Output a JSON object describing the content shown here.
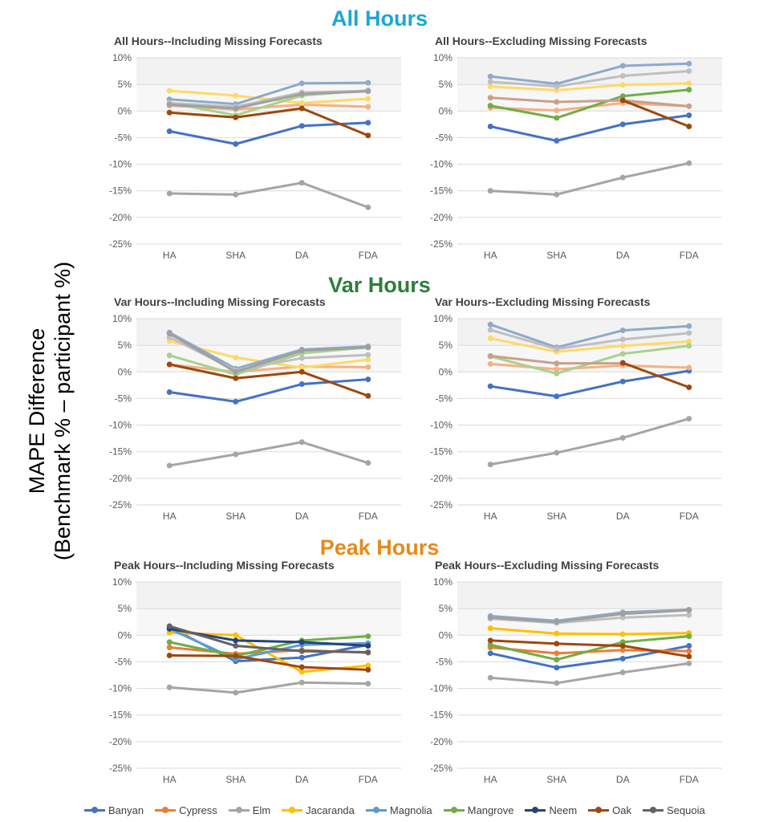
{
  "y_axis_label": {
    "line1": "MAPE Difference",
    "line2": "(Benchmark  %  – participant  %)"
  },
  "sections": [
    {
      "title": "All Hours",
      "color": "#1BA7D6"
    },
    {
      "title": "Var Hours",
      "color": "#2E7D3A"
    },
    {
      "title": "Peak Hours",
      "color": "#E8891A"
    }
  ],
  "legend": [
    {
      "name": "Banyan",
      "color": "#4472C4"
    },
    {
      "name": "Cypress",
      "color": "#ED7D31"
    },
    {
      "name": "Elm",
      "color": "#A5A5A5"
    },
    {
      "name": "Jacaranda",
      "color": "#FFC000"
    },
    {
      "name": "Magnolia",
      "color": "#5B9BD5"
    },
    {
      "name": "Mangrove",
      "color": "#70AD47"
    },
    {
      "name": "Neem",
      "color": "#264478"
    },
    {
      "name": "Oak",
      "color": "#9E480E"
    },
    {
      "name": "Sequoia",
      "color": "#636363"
    }
  ],
  "chart_data": [
    {
      "type": "line",
      "title": "All Hours--Including Missing Forecasts",
      "categories": [
        "HA",
        "SHA",
        "DA",
        "FDA"
      ],
      "ylim": [
        -25,
        10
      ],
      "yticks": [
        "10%",
        "5%",
        "0%",
        "-5%",
        "-10%",
        "-15%",
        "-20%",
        "-25%"
      ],
      "series": [
        {
          "name": "Banyan",
          "color": "#4472C4",
          "values": [
            -3.8,
            -6.2,
            -2.8,
            -2.2
          ]
        },
        {
          "name": "Cypress",
          "color": "#F4B183",
          "values": [
            1.0,
            0.3,
            1.2,
            0.8
          ]
        },
        {
          "name": "Elm",
          "color": "#A5A5A5",
          "values": [
            -15.5,
            -15.7,
            -13.5,
            -18.1
          ]
        },
        {
          "name": "Jacaranda",
          "color": "#FFD966",
          "values": [
            3.8,
            2.9,
            1.5,
            2.3
          ]
        },
        {
          "name": "Magnolia",
          "color": "#8EA9C9",
          "values": [
            2.2,
            1.3,
            5.2,
            5.3
          ]
        },
        {
          "name": "Mangrove",
          "color": "#A9D18E",
          "values": [
            1.5,
            -0.8,
            2.9,
            3.9
          ]
        },
        {
          "name": "Neem",
          "color": "#BFBFBF",
          "values": [
            1.5,
            0.8,
            3.5,
            3.8
          ]
        },
        {
          "name": "Oak",
          "color": "#9E480E",
          "values": [
            -0.3,
            -1.2,
            0.5,
            -4.6
          ]
        },
        {
          "name": "Sequoia",
          "color": "#A0A0A0",
          "values": [
            1.2,
            0.5,
            3.2,
            3.7
          ]
        }
      ]
    },
    {
      "type": "line",
      "title": "All Hours--Excluding Missing Forecasts",
      "categories": [
        "HA",
        "SHA",
        "DA",
        "FDA"
      ],
      "ylim": [
        -25,
        10
      ],
      "yticks": [
        "10%",
        "5%",
        "0%",
        "-5%",
        "-10%",
        "-15%",
        "-20%",
        "-25%"
      ],
      "series": [
        {
          "name": "Banyan",
          "color": "#4472C4",
          "values": [
            -2.9,
            -5.6,
            -2.5,
            -0.8
          ]
        },
        {
          "name": "Cypress",
          "color": "#F4B183",
          "values": [
            0.6,
            0.1,
            1.5,
            0.9
          ]
        },
        {
          "name": "Elm",
          "color": "#A5A5A5",
          "values": [
            -15.0,
            -15.7,
            -12.5,
            -9.8
          ]
        },
        {
          "name": "Jacaranda",
          "color": "#FFD966",
          "values": [
            4.6,
            3.9,
            4.9,
            5.2
          ]
        },
        {
          "name": "Magnolia",
          "color": "#8EA9C9",
          "values": [
            6.5,
            5.1,
            8.5,
            8.9
          ]
        },
        {
          "name": "Mangrove",
          "color": "#70AD47",
          "values": [
            1.0,
            -1.3,
            2.8,
            4.0
          ]
        },
        {
          "name": "Neem",
          "color": "#BFBFBF",
          "values": [
            5.5,
            4.6,
            6.6,
            7.5
          ]
        },
        {
          "name": "Oak",
          "color": "#C9A08C",
          "values": [
            2.5,
            1.7,
            2.0,
            0.9
          ]
        },
        {
          "name": "Sequoia",
          "color": "#9E480E",
          "values": [
            null,
            null,
            2.0,
            -2.9
          ]
        }
      ]
    },
    {
      "type": "line",
      "title": "Var Hours--Including Missing Forecasts",
      "categories": [
        "HA",
        "SHA",
        "DA",
        "FDA"
      ],
      "ylim": [
        -25,
        10
      ],
      "yticks": [
        "10%",
        "5%",
        "0%",
        "-5%",
        "-10%",
        "-15%",
        "-20%",
        "-25%"
      ],
      "series": [
        {
          "name": "Banyan",
          "color": "#4472C4",
          "values": [
            -3.8,
            -5.6,
            -2.3,
            -1.4
          ]
        },
        {
          "name": "Cypress",
          "color": "#F4B183",
          "values": [
            1.4,
            0.0,
            1.0,
            0.9
          ]
        },
        {
          "name": "Elm",
          "color": "#A5A5A5",
          "values": [
            -17.6,
            -15.5,
            -13.2,
            -17.1
          ]
        },
        {
          "name": "Jacaranda",
          "color": "#FFD966",
          "values": [
            5.8,
            2.7,
            0.8,
            2.3
          ]
        },
        {
          "name": "Magnolia",
          "color": "#8EA9C9",
          "values": [
            7.4,
            0.6,
            4.2,
            4.8
          ]
        },
        {
          "name": "Mangrove",
          "color": "#A9D18E",
          "values": [
            3.1,
            -0.5,
            3.5,
            4.6
          ]
        },
        {
          "name": "Neem",
          "color": "#BFBFBF",
          "values": [
            6.5,
            0.3,
            2.6,
            3.2
          ]
        },
        {
          "name": "Oak",
          "color": "#9E480E",
          "values": [
            1.4,
            -1.2,
            0.0,
            -4.5
          ]
        },
        {
          "name": "Sequoia",
          "color": "#A0A0A0",
          "values": [
            7.2,
            0.0,
            4.0,
            4.6
          ]
        }
      ]
    },
    {
      "type": "line",
      "title": "Var Hours--Excluding Missing Forecasts",
      "categories": [
        "HA",
        "SHA",
        "DA",
        "FDA"
      ],
      "ylim": [
        -25,
        10
      ],
      "yticks": [
        "10%",
        "5%",
        "0%",
        "-5%",
        "-10%",
        "-15%",
        "-20%",
        "-25%"
      ],
      "series": [
        {
          "name": "Banyan",
          "color": "#4472C4",
          "values": [
            -2.7,
            -4.6,
            -1.8,
            0.2
          ]
        },
        {
          "name": "Cypress",
          "color": "#F4B183",
          "values": [
            1.5,
            0.5,
            1.2,
            0.8
          ]
        },
        {
          "name": "Elm",
          "color": "#A5A5A5",
          "values": [
            -17.4,
            -15.2,
            -12.4,
            -8.8
          ]
        },
        {
          "name": "Jacaranda",
          "color": "#FFD966",
          "values": [
            6.3,
            3.8,
            4.9,
            5.7
          ]
        },
        {
          "name": "Magnolia",
          "color": "#8EA9C9",
          "values": [
            8.9,
            4.6,
            7.8,
            8.6
          ]
        },
        {
          "name": "Mangrove",
          "color": "#A9D18E",
          "values": [
            2.9,
            -0.3,
            3.4,
            4.9
          ]
        },
        {
          "name": "Neem",
          "color": "#BFBFBF",
          "values": [
            7.9,
            4.3,
            6.1,
            7.3
          ]
        },
        {
          "name": "Oak",
          "color": "#C9A08C",
          "values": [
            3.0,
            1.6,
            1.6,
            null
          ]
        },
        {
          "name": "Sequoia",
          "color": "#9E480E",
          "values": [
            null,
            null,
            1.7,
            -2.9
          ]
        }
      ]
    },
    {
      "type": "line",
      "title": "Peak Hours--Including Missing Forecasts",
      "categories": [
        "HA",
        "SHA",
        "DA",
        "FDA"
      ],
      "ylim": [
        -25,
        10
      ],
      "yticks": [
        "10%",
        "5%",
        "0%",
        "-5%",
        "-10%",
        "-15%",
        "-20%",
        "-25%"
      ],
      "series": [
        {
          "name": "Banyan",
          "color": "#4472C4",
          "values": [
            1.5,
            -4.9,
            -4.2,
            -1.8
          ]
        },
        {
          "name": "Cypress",
          "color": "#ED7D31",
          "values": [
            -2.3,
            -3.5,
            -2.8,
            -3.3
          ]
        },
        {
          "name": "Elm",
          "color": "#A5A5A5",
          "values": [
            -9.8,
            -10.8,
            -8.9,
            -9.1
          ]
        },
        {
          "name": "Jacaranda",
          "color": "#FFC000",
          "values": [
            0.5,
            0.0,
            -6.9,
            -5.7
          ]
        },
        {
          "name": "Magnolia",
          "color": "#5B9BD5",
          "values": [
            1.2,
            -4.5,
            -1.8,
            -1.5
          ]
        },
        {
          "name": "Mangrove",
          "color": "#70AD47",
          "values": [
            -1.3,
            -3.9,
            -1.0,
            -0.2
          ]
        },
        {
          "name": "Neem",
          "color": "#264478",
          "values": [
            1.2,
            -1.0,
            -1.3,
            -2.0
          ]
        },
        {
          "name": "Oak",
          "color": "#9E480E",
          "values": [
            -3.8,
            -3.9,
            -6.0,
            -6.5
          ]
        },
        {
          "name": "Sequoia",
          "color": "#636363",
          "values": [
            1.7,
            -2.0,
            -3.0,
            -3.2
          ]
        }
      ]
    },
    {
      "type": "line",
      "title": "Peak Hours--Excluding Missing Forecasts",
      "categories": [
        "HA",
        "SHA",
        "DA",
        "FDA"
      ],
      "ylim": [
        -25,
        10
      ],
      "yticks": [
        "10%",
        "5%",
        "0%",
        "-5%",
        "-10%",
        "-15%",
        "-20%",
        "-25%"
      ],
      "series": [
        {
          "name": "Banyan",
          "color": "#4472C4",
          "values": [
            -3.4,
            -6.1,
            -4.4,
            -2.0
          ]
        },
        {
          "name": "Cypress",
          "color": "#ED7D31",
          "values": [
            -2.3,
            -3.4,
            -2.8,
            -3.0
          ]
        },
        {
          "name": "Elm",
          "color": "#A5A5A5",
          "values": [
            -8.0,
            -9.0,
            -7.0,
            -5.3
          ]
        },
        {
          "name": "Jacaranda",
          "color": "#FFC000",
          "values": [
            1.3,
            0.3,
            0.2,
            0.4
          ]
        },
        {
          "name": "Magnolia",
          "color": "#8EA9C9",
          "values": [
            3.6,
            2.7,
            4.3,
            4.8
          ]
        },
        {
          "name": "Mangrove",
          "color": "#70AD47",
          "values": [
            -1.8,
            -4.6,
            -1.3,
            -0.2
          ]
        },
        {
          "name": "Neem",
          "color": "#BFBFBF",
          "values": [
            3.1,
            2.3,
            3.3,
            3.8
          ]
        },
        {
          "name": "Oak",
          "color": "#9E480E",
          "values": [
            -1.0,
            -1.6,
            -2.0,
            -4.0
          ]
        },
        {
          "name": "Sequoia",
          "color": "#A0A0A0",
          "values": [
            3.3,
            2.5,
            4.0,
            4.7
          ]
        }
      ]
    }
  ]
}
